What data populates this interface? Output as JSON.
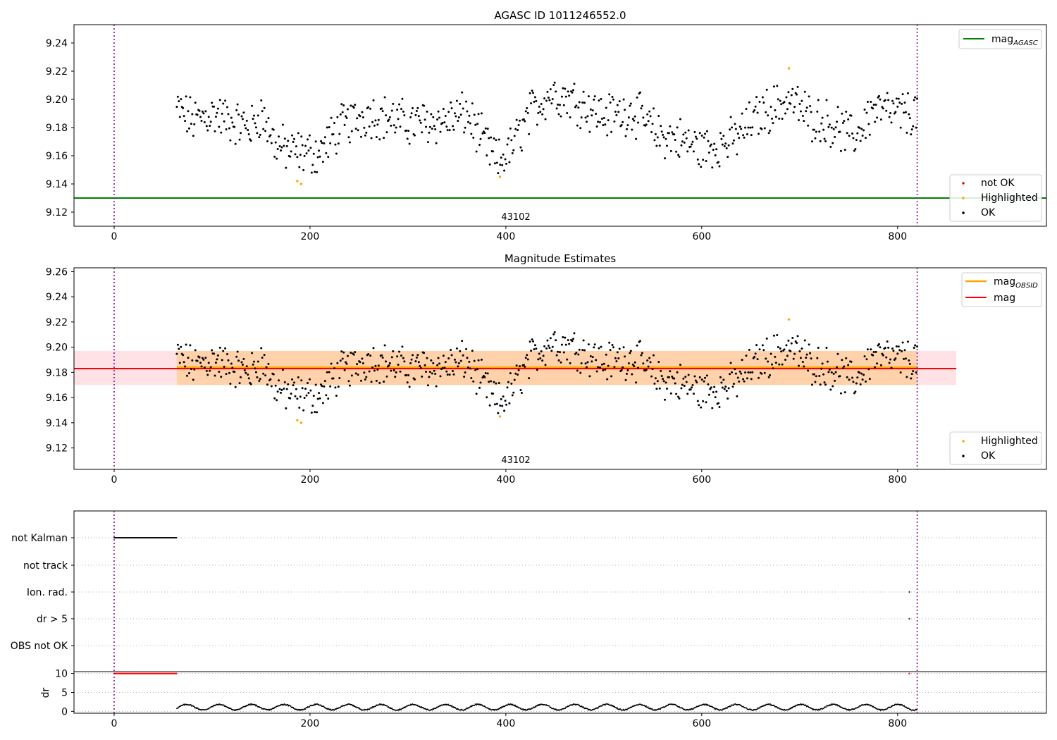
{
  "chart_data": [
    {
      "type": "scatter",
      "title": "AGASC ID 1011246552.0",
      "xlim": [
        -41,
        952
      ],
      "ylim": [
        9.11,
        9.253
      ],
      "xticks": [
        0,
        200,
        400,
        600,
        800
      ],
      "yticks": [
        9.12,
        9.14,
        9.16,
        9.18,
        9.2,
        9.22,
        9.24
      ],
      "vlines": [
        0,
        820
      ],
      "obsid_label": {
        "text": "43102",
        "x": 410
      },
      "lines": [
        {
          "name": "mag_AGASC",
          "main": "mag",
          "sub": "AGASC",
          "y": 9.13,
          "x": [
            -41,
            952
          ],
          "color": "#008000"
        }
      ],
      "series": [
        {
          "name": "not OK",
          "color": "#ff0000",
          "points": []
        },
        {
          "name": "Highlighted",
          "color": "#ffa500",
          "points": [
            [
              187,
              9.142
            ],
            [
              191,
              9.14
            ],
            [
              394,
              9.145
            ],
            [
              689,
              9.222
            ]
          ]
        },
        {
          "name": "OK",
          "color": "#000000",
          "trend": [
            [
              64,
              9.193
            ],
            [
              80,
              9.185
            ],
            [
              100,
              9.19
            ],
            [
              125,
              9.183
            ],
            [
              140,
              9.18
            ],
            [
              150,
              9.19
            ],
            [
              165,
              9.168
            ],
            [
              180,
              9.163
            ],
            [
              195,
              9.162
            ],
            [
              210,
              9.162
            ],
            [
              230,
              9.18
            ],
            [
              260,
              9.19
            ],
            [
              300,
              9.183
            ],
            [
              340,
              9.185
            ],
            [
              360,
              9.19
            ],
            [
              375,
              9.172
            ],
            [
              392,
              9.155
            ],
            [
              405,
              9.165
            ],
            [
              425,
              9.19
            ],
            [
              445,
              9.205
            ],
            [
              470,
              9.2
            ],
            [
              500,
              9.188
            ],
            [
              530,
              9.192
            ],
            [
              555,
              9.175
            ],
            [
              575,
              9.172
            ],
            [
              600,
              9.165
            ],
            [
              630,
              9.17
            ],
            [
              660,
              9.19
            ],
            [
              690,
              9.2
            ],
            [
              710,
              9.188
            ],
            [
              735,
              9.182
            ],
            [
              755,
              9.172
            ],
            [
              775,
              9.193
            ],
            [
              800,
              9.19
            ],
            [
              820,
              9.19
            ]
          ],
          "count": 720,
          "x_range": [
            64,
            820
          ]
        }
      ],
      "legends": [
        {
          "position": "upper-right",
          "entries": [
            "mag_AGASC"
          ]
        },
        {
          "position": "lower-right",
          "entries": [
            "not OK",
            "Highlighted",
            "OK"
          ]
        }
      ]
    },
    {
      "type": "scatter",
      "title": "Magnitude Estimates",
      "xlim": [
        -41,
        952
      ],
      "ylim": [
        9.103,
        9.263
      ],
      "xticks": [
        0,
        200,
        400,
        600,
        800
      ],
      "yticks": [
        9.12,
        9.14,
        9.16,
        9.18,
        9.2,
        9.22,
        9.24,
        9.26
      ],
      "vlines": [
        0,
        820
      ],
      "obsid_label": {
        "text": "43102",
        "x": 410
      },
      "bands": [
        {
          "name": "mag range",
          "x": [
            -41,
            860
          ],
          "y": [
            9.17,
            9.197
          ],
          "color": "#ffb6c1"
        },
        {
          "name": "mag_OBSID range",
          "x": [
            64,
            820
          ],
          "y": [
            9.17,
            9.197
          ],
          "color": "#ffa500"
        }
      ],
      "lines": [
        {
          "name": "mag_OBSID",
          "main": "mag",
          "sub": "OBSID",
          "y": 9.184,
          "x": [
            64,
            820
          ],
          "color": "#ffa500"
        },
        {
          "name": "mag",
          "main": "mag",
          "sub": "",
          "y": 9.183,
          "x": [
            -41,
            860
          ],
          "color": "#ff0000"
        }
      ],
      "series": [
        {
          "name": "Highlighted",
          "color": "#ffa500",
          "same_as_panel": 0
        },
        {
          "name": "OK",
          "color": "#000000",
          "same_as_panel": 0
        }
      ],
      "legends": [
        {
          "position": "upper-right",
          "entries": [
            "mag_OBSID",
            "mag"
          ]
        },
        {
          "position": "lower-right",
          "entries": [
            "Highlighted",
            "OK"
          ]
        }
      ]
    },
    {
      "type": "scatter",
      "title": "",
      "xlim": [
        -41,
        952
      ],
      "xticks": [
        0,
        200,
        400,
        600,
        800
      ],
      "vlines": [
        0,
        820
      ],
      "flags": {
        "rows": [
          "not Kalman",
          "not track",
          "Ion. rad.",
          "dr > 5",
          "OBS not OK"
        ],
        "points": [
          {
            "row": "not Kalman",
            "x_range": [
              0,
              64
            ]
          },
          {
            "row": "Ion. rad.",
            "x": [
              812
            ]
          },
          {
            "row": "dr > 5",
            "x": [
              812
            ]
          }
        ]
      },
      "dr": {
        "ylabel": "dr",
        "yticks": [
          0,
          5,
          10
        ],
        "ylim": [
          -0.5,
          10.5
        ],
        "clipped": {
          "value": 10,
          "x_range": [
            0,
            64
          ],
          "extra_x": [
            812
          ],
          "color": "#ff0000"
        },
        "series": {
          "x_range": [
            64,
            820
          ],
          "min": 0.3,
          "max": 1.9,
          "color": "#000000"
        }
      }
    }
  ]
}
